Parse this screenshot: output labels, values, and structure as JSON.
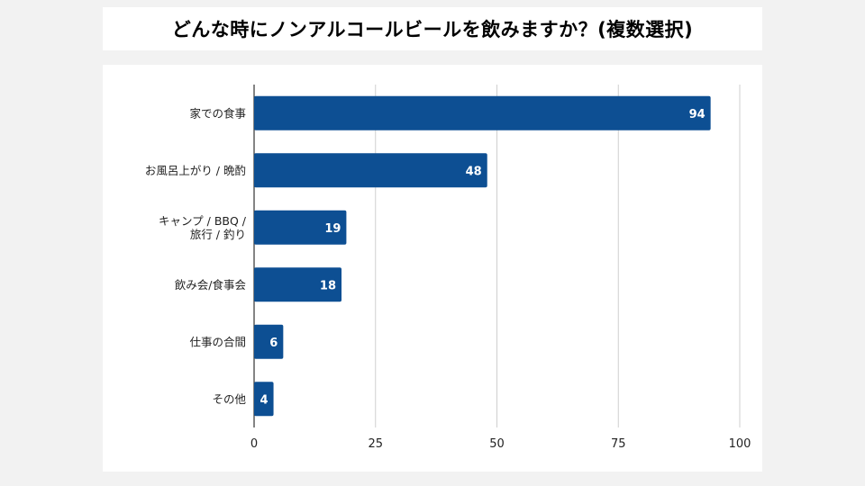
{
  "chart_data": {
    "type": "bar",
    "orientation": "horizontal",
    "title": "どんな時にノンアルコールビールを飲みますか？(複数選択)",
    "categories": [
      [
        "家での食事"
      ],
      [
        "お風呂上がり / 晩酌"
      ],
      [
        "キャンプ / BBQ /",
        "旅行 / 釣り"
      ],
      [
        "飲み会/食事会"
      ],
      [
        "仕事の合間"
      ],
      [
        "その他"
      ]
    ],
    "values": [
      94,
      48,
      19,
      18,
      6,
      4
    ],
    "xlim": [
      0,
      100
    ],
    "xticks": [
      "0",
      "25",
      "50",
      "75",
      "100"
    ],
    "grid": true,
    "bar_color": "#0d4f93",
    "xlabel": "",
    "ylabel": ""
  }
}
